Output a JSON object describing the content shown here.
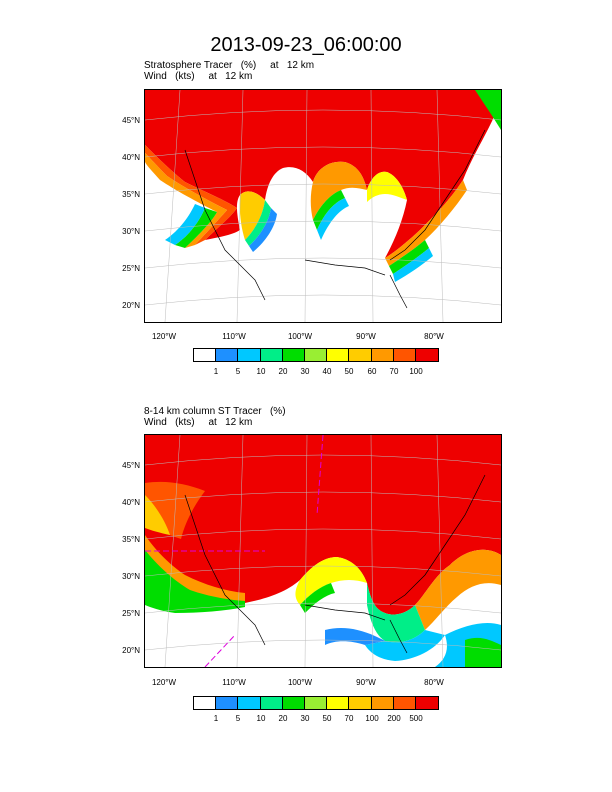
{
  "title": "2013-09-23_06:00:00",
  "panel1": {
    "title_line1": "Stratosphere Tracer   (%)     at   12 km",
    "title_line2": "Wind   (kts)     at   12 km",
    "colorbar_labels": [
      "1",
      "5",
      "10",
      "20",
      "30",
      "40",
      "50",
      "60",
      "70",
      "100"
    ],
    "colors": [
      "#ffffff",
      "#1e90ff",
      "#00c8ff",
      "#00ee88",
      "#00dd00",
      "#99ee33",
      "#ffff00",
      "#ffcc00",
      "#ff9900",
      "#ff5500",
      "#ee0000"
    ]
  },
  "panel2": {
    "title_line1": "8-14 km column ST Tracer   (%)",
    "title_line2": "Wind   (kts)     at   12 km",
    "colorbar_labels": [
      "1",
      "5",
      "10",
      "20",
      "30",
      "50",
      "70",
      "100",
      "200",
      "500"
    ],
    "colors": [
      "#ffffff",
      "#1e90ff",
      "#00c8ff",
      "#00ee88",
      "#00dd00",
      "#99ee33",
      "#ffff00",
      "#ffcc00",
      "#ff9900",
      "#ff5500",
      "#ee0000"
    ]
  },
  "lat_labels": [
    "45°N",
    "40°N",
    "35°N",
    "30°N",
    "25°N",
    "20°N"
  ],
  "lon_labels": [
    "120°W",
    "110°W",
    "100°W",
    "90°W",
    "80°W"
  ]
}
